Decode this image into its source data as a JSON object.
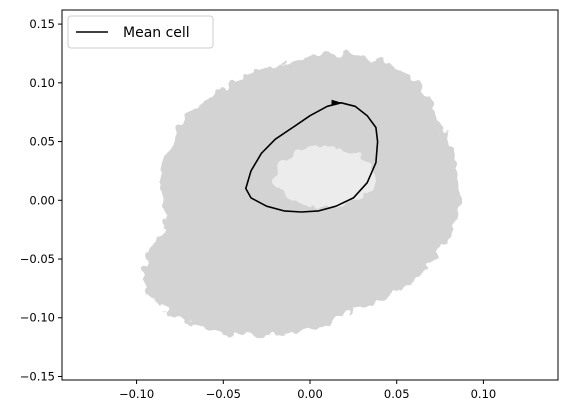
{
  "chart_data": {
    "type": "line",
    "title": "",
    "xlabel": "",
    "ylabel": "",
    "xlim": [
      -0.143,
      0.143
    ],
    "ylim": [
      -0.153,
      0.162
    ],
    "x_ticks": [
      -0.1,
      -0.05,
      0.0,
      0.05,
      0.1
    ],
    "x_tick_labels": [
      "−0.10",
      "−0.05",
      "0.00",
      "0.05",
      "0.10"
    ],
    "y_ticks": [
      -0.15,
      -0.1,
      -0.05,
      0.0,
      0.05,
      0.1,
      0.15
    ],
    "y_tick_labels": [
      "−0.15",
      "−0.10",
      "−0.05",
      "0.00",
      "0.05",
      "0.10",
      "0.15"
    ],
    "grid": false,
    "legend": {
      "placement": "top-left",
      "entries": [
        "Mean cell"
      ]
    },
    "series": [
      {
        "name": "Mean cell",
        "color": "#000000",
        "x": [
          0.018,
          0.01,
          0.0,
          -0.01,
          -0.02,
          -0.028,
          -0.034,
          -0.037,
          -0.034,
          -0.025,
          -0.015,
          -0.005,
          0.005,
          0.015,
          0.025,
          0.033,
          0.038,
          0.039,
          0.038,
          0.033,
          0.026,
          0.018,
          0.013
        ],
        "y": [
          0.083,
          0.08,
          0.072,
          0.062,
          0.052,
          0.04,
          0.025,
          0.01,
          0.002,
          -0.005,
          -0.009,
          -0.01,
          -0.009,
          -0.005,
          0.002,
          0.015,
          0.032,
          0.05,
          0.062,
          0.072,
          0.08,
          0.083,
          0.083
        ]
      }
    ],
    "background_cloud": {
      "color": "#d3d3d3",
      "description_of_extent": "individual cell trajectories forming a diffuse gray ring"
    }
  }
}
